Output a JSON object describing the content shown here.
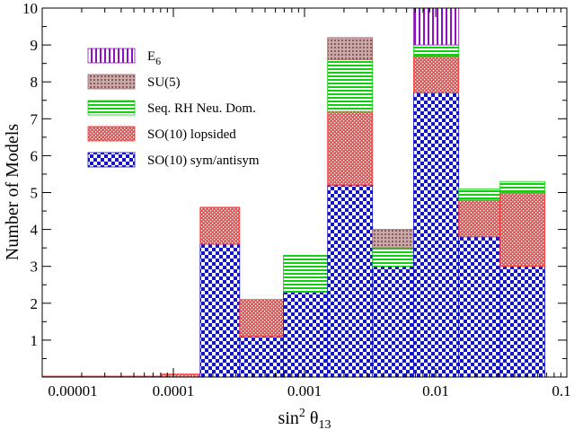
{
  "chart_data": {
    "type": "bar",
    "subtype": "stacked-histogram",
    "title": "",
    "xlabel": "sin",
    "xlabel_sup": "2",
    "xlabel_theta": "θ",
    "xlabel_sub": "13",
    "ylabel": "Number of Models",
    "x_scale": "log",
    "xlim": [
      1e-05,
      0.1
    ],
    "ylim": [
      0,
      10
    ],
    "x_tick_labels": [
      "0.00001",
      "0.0001",
      "0.001",
      "0.01",
      "0.1"
    ],
    "x_tick_values": [
      1e-05,
      0.0001,
      0.001,
      0.01,
      0.1
    ],
    "y_tick_labels": [
      "1",
      "2",
      "3",
      "4",
      "5",
      "6",
      "7",
      "8",
      "9",
      "10"
    ],
    "y_tick_values": [
      1,
      2,
      3,
      4,
      5,
      6,
      7,
      8,
      9,
      10
    ],
    "legend_position": "top-left",
    "bins": [
      {
        "x0": 1e-05,
        "x1": 8e-05
      },
      {
        "x0": 8e-05,
        "x1": 0.00016
      },
      {
        "x0": 0.00016,
        "x1": 0.00032
      },
      {
        "x0": 0.00032,
        "x1": 0.00069
      },
      {
        "x0": 0.00069,
        "x1": 0.0015
      },
      {
        "x0": 0.0015,
        "x1": 0.0033
      },
      {
        "x0": 0.0033,
        "x1": 0.0068
      },
      {
        "x0": 0.0068,
        "x1": 0.015
      },
      {
        "x0": 0.015,
        "x1": 0.031
      },
      {
        "x0": 0.031,
        "x1": 0.068
      }
    ],
    "series": [
      {
        "name": "SO(10) sym/antisym",
        "key": "sym",
        "color": "#1010c8",
        "values": [
          0,
          0,
          3.6,
          1.1,
          2.3,
          5.2,
          3.0,
          7.7,
          3.8,
          3.0
        ]
      },
      {
        "name": "SO(10) lopsided",
        "key": "lop",
        "color": "#ff3030",
        "values": [
          0.02,
          0.08,
          1.0,
          1.0,
          0,
          2.0,
          0,
          1.0,
          1.0,
          2.0
        ]
      },
      {
        "name": "Seq. RH Neu. Dom.",
        "key": "seq",
        "color": "#10d010",
        "values": [
          0,
          0,
          0,
          0,
          1.0,
          1.4,
          0.5,
          0.3,
          0.3,
          0.3
        ]
      },
      {
        "name": "SU(5)",
        "key": "su5",
        "color": "#a06868",
        "values": [
          0,
          0,
          0,
          0,
          0,
          0.6,
          0.5,
          0,
          0,
          0
        ]
      },
      {
        "name": "E",
        "key": "e6",
        "color": "#9010c0",
        "values": [
          0,
          0,
          0,
          0,
          0,
          0,
          0,
          1.2,
          0,
          0
        ]
      }
    ],
    "legend": [
      {
        "key": "e6",
        "label": "E",
        "sub": "6"
      },
      {
        "key": "su5",
        "label": "SU(5)",
        "sub": ""
      },
      {
        "key": "seq",
        "label": "Seq. RH Neu. Dom.",
        "sub": ""
      },
      {
        "key": "lop",
        "label": "SO(10) lopsided",
        "sub": ""
      },
      {
        "key": "sym",
        "label": "SO(10) sym/antisym",
        "sub": ""
      }
    ]
  }
}
